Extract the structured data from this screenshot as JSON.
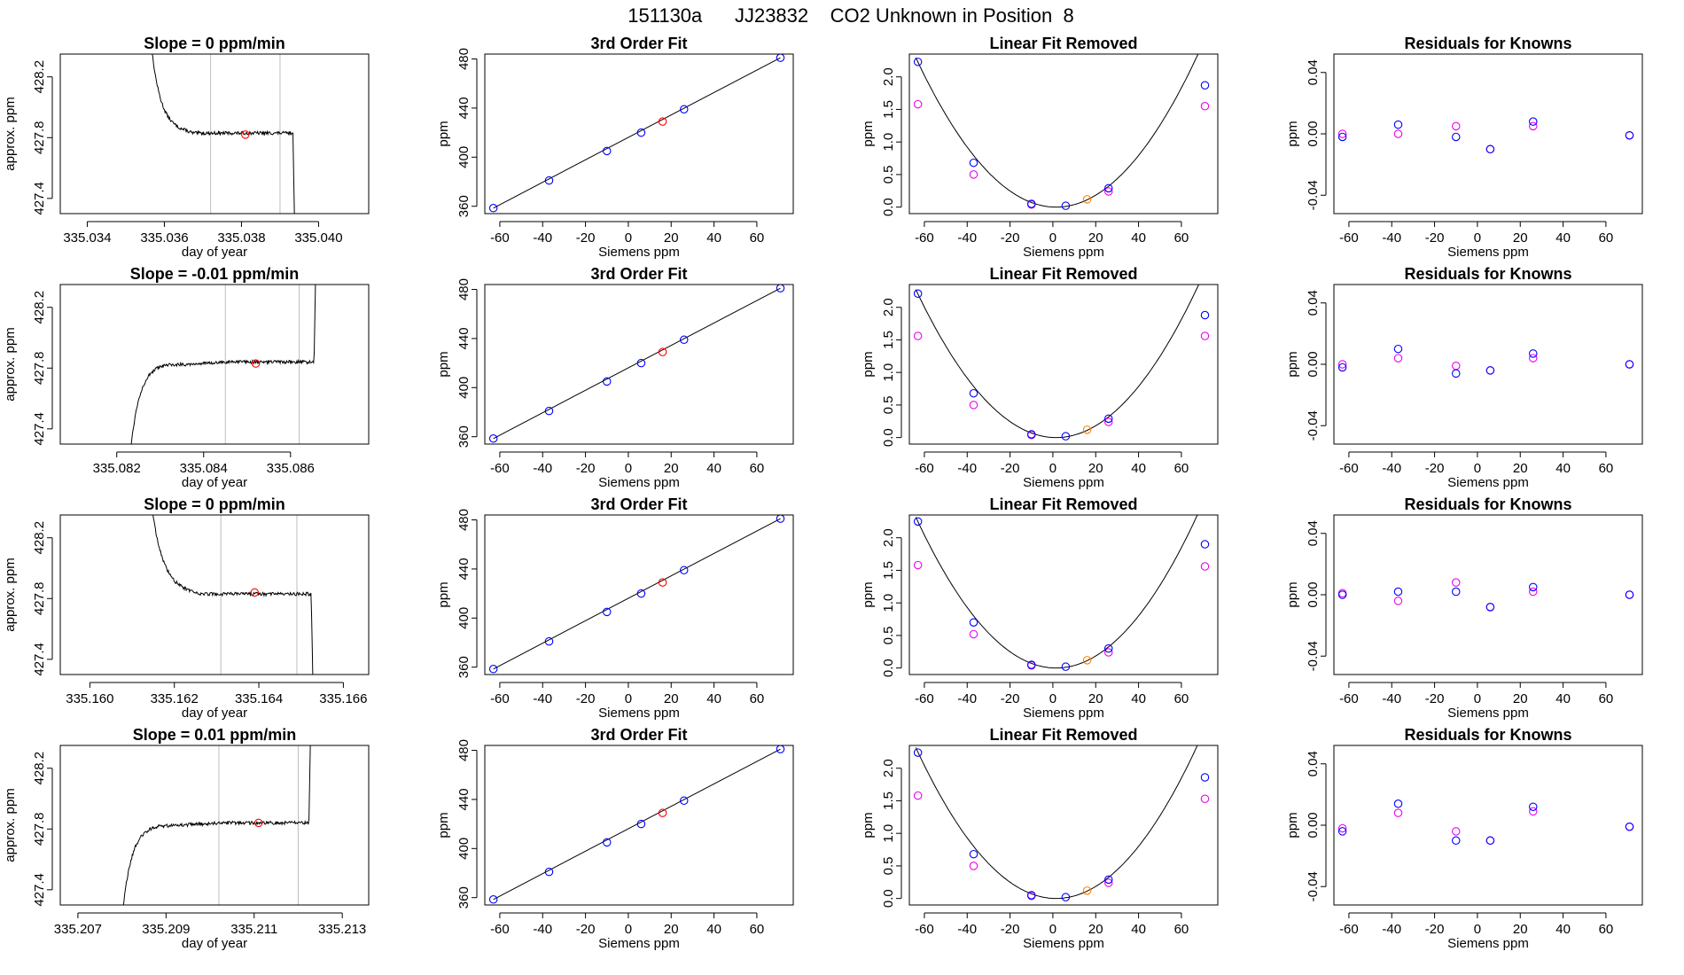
{
  "figure_title": "151130a      JJ23832    CO2 Unknown in Position  8",
  "colors": {
    "trace": "#000000",
    "marker_red": "#ff0000",
    "marker_blue": "#0000ff",
    "marker_magenta": "#ee00ee",
    "marker_orange": "#ff7f00",
    "gridline": "#bebebe",
    "fit_line": "#000000"
  },
  "chart_data": [
    {
      "type": "line",
      "panel": "time",
      "row": 1,
      "title": "Slope =  0  ppm/min",
      "xlabel": "day of year",
      "ylabel": "approx. ppm",
      "xlim": [
        335.0333,
        335.0413
      ],
      "ylim": [
        427.3,
        428.35
      ],
      "xticks": [
        335.034,
        335.036,
        335.038,
        335.04
      ],
      "xticklabels": [
        "335.034",
        "335.036",
        "335.038",
        "335.040"
      ],
      "yticks": [
        427.4,
        427.8,
        428.2
      ],
      "yticklabels": [
        "427.4",
        "427.8",
        "428.2"
      ],
      "vlines": [
        335.0372,
        335.039
      ],
      "shape": "falling",
      "start": 335.0356,
      "plateau_start": 335.0367,
      "end": 335.0394,
      "marker": [
        335.0381,
        427.82
      ]
    },
    {
      "type": "scatter",
      "panel": "fit",
      "row": 1,
      "title": "3rd Order Fit",
      "xlabel": "Siemens ppm",
      "ylabel": "ppm",
      "xlim": [
        -67,
        77
      ],
      "ylim": [
        354,
        484
      ],
      "xticks": [
        -60,
        -40,
        -20,
        0,
        20,
        40,
        60
      ],
      "xticklabels": [
        "-60",
        "-40",
        "-20",
        "0",
        "20",
        "40",
        "60"
      ],
      "yticks": [
        360,
        400,
        440,
        480
      ],
      "yticklabels": [
        "360",
        "400",
        "440",
        "480"
      ],
      "line": [
        [
          -63,
          358.5
        ],
        [
          71,
          481
        ]
      ],
      "points_blue": [
        [
          -63,
          358.5
        ],
        [
          -37,
          381
        ],
        [
          -10,
          405
        ],
        [
          6,
          420
        ],
        [
          26,
          439
        ],
        [
          71,
          481
        ]
      ],
      "points_red": [
        [
          16,
          429
        ]
      ]
    },
    {
      "type": "scatter",
      "panel": "lin",
      "row": 1,
      "title": "Linear Fit Removed",
      "xlabel": "Siemens ppm",
      "ylabel": "ppm",
      "xlim": [
        -67,
        77
      ],
      "ylim": [
        -0.1,
        2.35
      ],
      "xticks": [
        -60,
        -40,
        -20,
        0,
        20,
        40,
        60
      ],
      "xticklabels": [
        "-60",
        "-40",
        "-20",
        "0",
        "20",
        "40",
        "60"
      ],
      "yticks": [
        0.0,
        0.5,
        1.0,
        1.5,
        2.0
      ],
      "yticklabels": [
        "0.0",
        "0.5",
        "1.0",
        "1.5",
        "2.0"
      ],
      "curve": {
        "vertex_x": 1.5,
        "coef": 0.000535
      },
      "points_blue": [
        [
          -63,
          2.23
        ],
        [
          -37,
          0.68
        ],
        [
          -10,
          0.05
        ],
        [
          6,
          0.02
        ],
        [
          26,
          0.29
        ],
        [
          71,
          1.87
        ]
      ],
      "points_magenta": [
        [
          -63,
          1.58
        ],
        [
          -37,
          0.5
        ],
        [
          -10,
          0.04
        ],
        [
          26,
          0.24
        ],
        [
          71,
          1.55
        ]
      ],
      "points_orange": [
        [
          16,
          0.12
        ]
      ]
    },
    {
      "type": "scatter",
      "panel": "res",
      "row": 1,
      "title": "Residuals for Knowns",
      "xlabel": "Siemens ppm",
      "ylabel": "ppm",
      "xlim": [
        -67,
        77
      ],
      "ylim": [
        -0.052,
        0.052
      ],
      "xticks": [
        -60,
        -40,
        -20,
        0,
        20,
        40,
        60
      ],
      "xticklabels": [
        "-60",
        "-40",
        "-20",
        "0",
        "20",
        "40",
        "60"
      ],
      "yticks": [
        -0.04,
        0.0,
        0.04
      ],
      "yticklabels": [
        "-0.04",
        "0.00",
        "0.04"
      ],
      "points_blue": [
        [
          -63,
          -0.002
        ],
        [
          -37,
          0.006
        ],
        [
          -10,
          -0.002
        ],
        [
          6,
          -0.01
        ],
        [
          26,
          0.008
        ],
        [
          71,
          -0.001
        ]
      ],
      "points_magenta": [
        [
          -63,
          0.0
        ],
        [
          -37,
          0.0
        ],
        [
          -10,
          0.005
        ],
        [
          6,
          -0.01
        ],
        [
          26,
          0.005
        ],
        [
          71,
          -0.001
        ]
      ]
    },
    {
      "type": "line",
      "panel": "time",
      "row": 2,
      "title": "Slope =  -0.01  ppm/min",
      "xlabel": "day of year",
      "ylabel": "approx. ppm",
      "xlim": [
        335.0807,
        335.0878
      ],
      "ylim": [
        427.3,
        428.35
      ],
      "xticks": [
        335.082,
        335.084,
        335.086
      ],
      "xticklabels": [
        "335.082",
        "335.084",
        "335.086"
      ],
      "yticks": [
        427.4,
        427.8,
        428.2
      ],
      "yticklabels": [
        "427.4",
        "427.8",
        "428.2"
      ],
      "vlines": [
        335.0845,
        335.0862
      ],
      "shape": "rising",
      "start": 335.0823,
      "plateau_start": 335.0832,
      "end": 335.0866,
      "marker": [
        335.0852,
        427.83
      ]
    },
    {
      "type": "scatter",
      "panel": "fit",
      "row": 2,
      "title": "3rd Order Fit",
      "xlabel": "Siemens ppm",
      "ylabel": "ppm",
      "xlim": [
        -67,
        77
      ],
      "ylim": [
        354,
        484
      ],
      "xticks": [
        -60,
        -40,
        -20,
        0,
        20,
        40,
        60
      ],
      "xticklabels": [
        "-60",
        "-40",
        "-20",
        "0",
        "20",
        "40",
        "60"
      ],
      "yticks": [
        360,
        400,
        440,
        480
      ],
      "yticklabels": [
        "360",
        "400",
        "440",
        "480"
      ],
      "line": [
        [
          -63,
          358.5
        ],
        [
          71,
          481
        ]
      ],
      "points_blue": [
        [
          -63,
          358.5
        ],
        [
          -37,
          381
        ],
        [
          -10,
          405
        ],
        [
          6,
          420
        ],
        [
          26,
          439
        ],
        [
          71,
          481
        ]
      ],
      "points_red": [
        [
          16,
          429
        ]
      ]
    },
    {
      "type": "scatter",
      "panel": "lin",
      "row": 2,
      "title": "Linear Fit Removed",
      "xlabel": "Siemens ppm",
      "ylabel": "ppm",
      "xlim": [
        -67,
        77
      ],
      "ylim": [
        -0.1,
        2.35
      ],
      "xticks": [
        -60,
        -40,
        -20,
        0,
        20,
        40,
        60
      ],
      "xticklabels": [
        "-60",
        "-40",
        "-20",
        "0",
        "20",
        "40",
        "60"
      ],
      "yticks": [
        0.0,
        0.5,
        1.0,
        1.5,
        2.0
      ],
      "yticklabels": [
        "0.0",
        "0.5",
        "1.0",
        "1.5",
        "2.0"
      ],
      "curve": {
        "vertex_x": 1.5,
        "coef": 0.00053
      },
      "points_blue": [
        [
          -63,
          2.21
        ],
        [
          -37,
          0.68
        ],
        [
          -10,
          0.05
        ],
        [
          6,
          0.02
        ],
        [
          26,
          0.29
        ],
        [
          71,
          1.88
        ]
      ],
      "points_magenta": [
        [
          -63,
          1.56
        ],
        [
          -37,
          0.5
        ],
        [
          -10,
          0.04
        ],
        [
          26,
          0.24
        ],
        [
          71,
          1.56
        ]
      ],
      "points_orange": [
        [
          16,
          0.12
        ]
      ]
    },
    {
      "type": "scatter",
      "panel": "res",
      "row": 2,
      "title": "Residuals for Knowns",
      "xlabel": "Siemens ppm",
      "ylabel": "ppm",
      "xlim": [
        -67,
        77
      ],
      "ylim": [
        -0.052,
        0.052
      ],
      "xticks": [
        -60,
        -40,
        -20,
        0,
        20,
        40,
        60
      ],
      "xticklabels": [
        "-60",
        "-40",
        "-20",
        "0",
        "20",
        "40",
        "60"
      ],
      "yticks": [
        -0.04,
        0.0,
        0.04
      ],
      "yticklabels": [
        "-0.04",
        "0.00",
        "0.04"
      ],
      "points_blue": [
        [
          -63,
          -0.002
        ],
        [
          -37,
          0.01
        ],
        [
          -10,
          -0.006
        ],
        [
          6,
          -0.004
        ],
        [
          26,
          0.007
        ],
        [
          71,
          0.0
        ]
      ],
      "points_magenta": [
        [
          -63,
          0.0
        ],
        [
          -37,
          0.004
        ],
        [
          -10,
          -0.001
        ],
        [
          6,
          -0.004
        ],
        [
          26,
          0.004
        ],
        [
          71,
          0.0
        ]
      ]
    },
    {
      "type": "line",
      "panel": "time",
      "row": 3,
      "title": "Slope =  0  ppm/min",
      "xlabel": "day of year",
      "ylabel": "approx. ppm",
      "xlim": [
        335.1593,
        335.1666
      ],
      "ylim": [
        427.3,
        428.35
      ],
      "xticks": [
        335.16,
        335.162,
        335.164,
        335.166
      ],
      "xticklabels": [
        "335.160",
        "335.162",
        "335.164",
        "335.166"
      ],
      "yticks": [
        427.4,
        427.8,
        428.2
      ],
      "yticklabels": [
        "427.4",
        "427.8",
        "428.2"
      ],
      "vlines": [
        335.1631,
        335.1649
      ],
      "shape": "falling",
      "start": 335.1614,
      "plateau_start": 335.1626,
      "end": 335.1653,
      "marker": [
        335.1639,
        427.84
      ]
    },
    {
      "type": "scatter",
      "panel": "fit",
      "row": 3,
      "title": "3rd Order Fit",
      "xlabel": "Siemens ppm",
      "ylabel": "ppm",
      "xlim": [
        -67,
        77
      ],
      "ylim": [
        354,
        484
      ],
      "xticks": [
        -60,
        -40,
        -20,
        0,
        20,
        40,
        60
      ],
      "xticklabels": [
        "-60",
        "-40",
        "-20",
        "0",
        "20",
        "40",
        "60"
      ],
      "yticks": [
        360,
        400,
        440,
        480
      ],
      "yticklabels": [
        "360",
        "400",
        "440",
        "480"
      ],
      "line": [
        [
          -63,
          358.5
        ],
        [
          71,
          481
        ]
      ],
      "points_blue": [
        [
          -63,
          358.5
        ],
        [
          -37,
          381
        ],
        [
          -10,
          405
        ],
        [
          6,
          420
        ],
        [
          26,
          439
        ],
        [
          71,
          481
        ]
      ],
      "points_red": [
        [
          16,
          429
        ]
      ]
    },
    {
      "type": "scatter",
      "panel": "lin",
      "row": 3,
      "title": "Linear Fit Removed",
      "xlabel": "Siemens ppm",
      "ylabel": "ppm",
      "xlim": [
        -67,
        77
      ],
      "ylim": [
        -0.1,
        2.35
      ],
      "xticks": [
        -60,
        -40,
        -20,
        0,
        20,
        40,
        60
      ],
      "xticklabels": [
        "-60",
        "-40",
        "-20",
        "0",
        "20",
        "40",
        "60"
      ],
      "yticks": [
        0.0,
        0.5,
        1.0,
        1.5,
        2.0
      ],
      "yticklabels": [
        "0.0",
        "0.5",
        "1.0",
        "1.5",
        "2.0"
      ],
      "curve": {
        "vertex_x": 1.5,
        "coef": 0.00054
      },
      "points_blue": [
        [
          -63,
          2.25
        ],
        [
          -37,
          0.7
        ],
        [
          -10,
          0.05
        ],
        [
          6,
          0.02
        ],
        [
          26,
          0.3
        ],
        [
          71,
          1.9
        ]
      ],
      "points_magenta": [
        [
          -63,
          1.58
        ],
        [
          -37,
          0.52
        ],
        [
          -10,
          0.04
        ],
        [
          26,
          0.24
        ],
        [
          71,
          1.56
        ]
      ],
      "points_orange": [
        [
          16,
          0.12
        ]
      ]
    },
    {
      "type": "scatter",
      "panel": "res",
      "row": 3,
      "title": "Residuals for Knowns",
      "xlabel": "Siemens ppm",
      "ylabel": "ppm",
      "xlim": [
        -67,
        77
      ],
      "ylim": [
        -0.052,
        0.052
      ],
      "xticks": [
        -60,
        -40,
        -20,
        0,
        20,
        40,
        60
      ],
      "xticklabels": [
        "-60",
        "-40",
        "-20",
        "0",
        "20",
        "40",
        "60"
      ],
      "yticks": [
        -0.04,
        0.0,
        0.04
      ],
      "yticklabels": [
        "-0.04",
        "0.00",
        "0.04"
      ],
      "points_blue": [
        [
          -63,
          0.0
        ],
        [
          -37,
          0.002
        ],
        [
          -10,
          0.002
        ],
        [
          6,
          -0.008
        ],
        [
          26,
          0.005
        ],
        [
          71,
          0.0
        ]
      ],
      "points_magenta": [
        [
          -63,
          0.001
        ],
        [
          -37,
          -0.004
        ],
        [
          -10,
          0.008
        ],
        [
          6,
          -0.008
        ],
        [
          26,
          0.002
        ],
        [
          71,
          0.0
        ]
      ]
    },
    {
      "type": "line",
      "panel": "time",
      "row": 4,
      "title": "Slope =  0.01  ppm/min",
      "xlabel": "day of year",
      "ylabel": "approx. ppm",
      "xlim": [
        335.2066,
        335.2136
      ],
      "ylim": [
        427.3,
        428.35
      ],
      "xticks": [
        335.207,
        335.209,
        335.211,
        335.213
      ],
      "xticklabels": [
        "335.207",
        "335.209",
        "335.211",
        "335.213"
      ],
      "yticks": [
        427.4,
        427.8,
        428.2
      ],
      "yticklabels": [
        "427.4",
        "427.8",
        "428.2"
      ],
      "vlines": [
        335.2102,
        335.212
      ],
      "shape": "rising",
      "start": 335.208,
      "plateau_start": 335.2089,
      "end": 335.2123,
      "marker": [
        335.2111,
        427.84
      ]
    },
    {
      "type": "scatter",
      "panel": "fit",
      "row": 4,
      "title": "3rd Order Fit",
      "xlabel": "Siemens ppm",
      "ylabel": "ppm",
      "xlim": [
        -67,
        77
      ],
      "ylim": [
        354,
        484
      ],
      "xticks": [
        -60,
        -40,
        -20,
        0,
        20,
        40,
        60
      ],
      "xticklabels": [
        "-60",
        "-40",
        "-20",
        "0",
        "20",
        "40",
        "60"
      ],
      "yticks": [
        360,
        400,
        440,
        480
      ],
      "yticklabels": [
        "360",
        "400",
        "440",
        "480"
      ],
      "line": [
        [
          -63,
          358.5
        ],
        [
          71,
          481
        ]
      ],
      "points_blue": [
        [
          -63,
          358.5
        ],
        [
          -37,
          381
        ],
        [
          -10,
          405
        ],
        [
          6,
          420
        ],
        [
          26,
          439
        ],
        [
          71,
          481
        ]
      ],
      "points_red": [
        [
          16,
          429
        ]
      ]
    },
    {
      "type": "scatter",
      "panel": "lin",
      "row": 4,
      "title": "Linear Fit Removed",
      "xlabel": "Siemens ppm",
      "ylabel": "ppm",
      "xlim": [
        -67,
        77
      ],
      "ylim": [
        -0.1,
        2.35
      ],
      "xticks": [
        -60,
        -40,
        -20,
        0,
        20,
        40,
        60
      ],
      "xticklabels": [
        "-60",
        "-40",
        "-20",
        "0",
        "20",
        "40",
        "60"
      ],
      "yticks": [
        0.0,
        0.5,
        1.0,
        1.5,
        2.0
      ],
      "yticklabels": [
        "0.0",
        "0.5",
        "1.0",
        "1.5",
        "2.0"
      ],
      "curve": {
        "vertex_x": 1.5,
        "coef": 0.00054
      },
      "points_blue": [
        [
          -63,
          2.24
        ],
        [
          -37,
          0.68
        ],
        [
          -10,
          0.05
        ],
        [
          6,
          0.02
        ],
        [
          26,
          0.29
        ],
        [
          71,
          1.86
        ]
      ],
      "points_magenta": [
        [
          -63,
          1.58
        ],
        [
          -37,
          0.5
        ],
        [
          -10,
          0.04
        ],
        [
          26,
          0.24
        ],
        [
          71,
          1.53
        ]
      ],
      "points_orange": [
        [
          16,
          0.12
        ]
      ]
    },
    {
      "type": "scatter",
      "panel": "res",
      "row": 4,
      "title": "Residuals for Knowns",
      "xlabel": "Siemens ppm",
      "ylabel": "ppm",
      "xlim": [
        -67,
        77
      ],
      "ylim": [
        -0.052,
        0.052
      ],
      "xticks": [
        -60,
        -40,
        -20,
        0,
        20,
        40,
        60
      ],
      "xticklabels": [
        "-60",
        "-40",
        "-20",
        "0",
        "20",
        "40",
        "60"
      ],
      "yticks": [
        -0.04,
        0.0,
        0.04
      ],
      "yticklabels": [
        "-0.04",
        "0.00",
        "0.04"
      ],
      "points_blue": [
        [
          -63,
          -0.004
        ],
        [
          -37,
          0.014
        ],
        [
          -10,
          -0.01
        ],
        [
          6,
          -0.01
        ],
        [
          26,
          0.012
        ],
        [
          71,
          -0.001
        ]
      ],
      "points_magenta": [
        [
          -63,
          -0.002
        ],
        [
          -37,
          0.008
        ],
        [
          -10,
          -0.004
        ],
        [
          6,
          -0.01
        ],
        [
          26,
          0.009
        ],
        [
          71,
          -0.001
        ]
      ]
    }
  ]
}
